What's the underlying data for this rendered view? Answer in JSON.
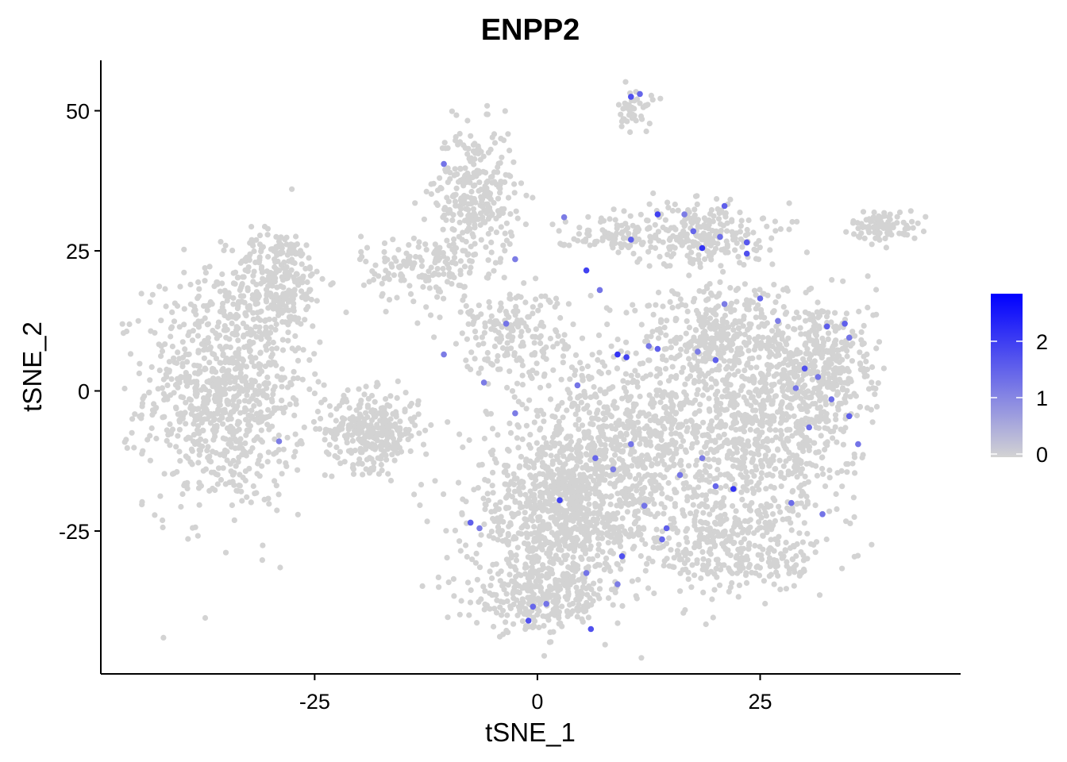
{
  "chart_data": {
    "type": "scatter",
    "title": "ENPP2",
    "xlabel": "tSNE_1",
    "ylabel": "tSNE_2",
    "xlim": [
      -49,
      47.5
    ],
    "ylim": [
      -50.5,
      59
    ],
    "x_ticks": [
      -25,
      0,
      25
    ],
    "y_ticks": [
      50,
      25,
      0,
      -25
    ],
    "grid": false,
    "legend": {
      "position": "right",
      "type": "colorbar",
      "min": 0,
      "max": 2.9,
      "ticks": [
        0,
        1,
        2
      ],
      "colors": {
        "low": "#d3d3d3",
        "high": "#0000ff"
      }
    },
    "clusters": [
      {
        "name": "c1",
        "cx": -35,
        "cy": 0,
        "sx": 6,
        "sy": 14,
        "n": 900
      },
      {
        "name": "c2",
        "cx": -29,
        "cy": 20,
        "sx": 3.5,
        "sy": 6,
        "n": 250
      },
      {
        "name": "c3",
        "cx": -18.5,
        "cy": -7,
        "sx": 3.5,
        "sy": 4.5,
        "n": 320
      },
      {
        "name": "c4",
        "cx": -7,
        "cy": 35,
        "sx": 3,
        "sy": 8,
        "n": 300
      },
      {
        "name": "c5",
        "cx": -13,
        "cy": 22,
        "sx": 4.5,
        "sy": 4,
        "n": 150
      },
      {
        "name": "c6",
        "cx": 11,
        "cy": 50,
        "sx": 1.3,
        "sy": 2.5,
        "n": 40
      },
      {
        "name": "c7",
        "cx": 39,
        "cy": 29.5,
        "sx": 2.5,
        "sy": 1.8,
        "n": 90
      },
      {
        "name": "c8",
        "cx": 3,
        "cy": -22,
        "sx": 7,
        "sy": 10,
        "n": 900
      },
      {
        "name": "c9",
        "cx": 0,
        "cy": -37,
        "sx": 5,
        "sy": 4,
        "n": 250
      },
      {
        "name": "c10",
        "cx": 12,
        "cy": -10,
        "sx": 9,
        "sy": 12,
        "n": 900
      },
      {
        "name": "c11",
        "cx": 27,
        "cy": -5,
        "sx": 6,
        "sy": 12,
        "n": 600
      },
      {
        "name": "c12",
        "cx": 32,
        "cy": 5,
        "sx": 4,
        "sy": 8,
        "n": 300
      },
      {
        "name": "c13",
        "cx": 18,
        "cy": 28,
        "sx": 5,
        "sy": 4,
        "n": 250
      },
      {
        "name": "c14",
        "cx": 8,
        "cy": 28,
        "sx": 4,
        "sy": 2,
        "n": 80
      },
      {
        "name": "c15",
        "cx": -3,
        "cy": 10,
        "sx": 5,
        "sy": 6,
        "n": 200
      },
      {
        "name": "c16",
        "cx": 20,
        "cy": 10,
        "sx": 5,
        "sy": 6,
        "n": 300
      },
      {
        "name": "c17",
        "cx": 23,
        "cy": -28,
        "sx": 6,
        "sy": 6,
        "n": 300
      }
    ],
    "expressing_points": [
      [
        10.5,
        52.5,
        1.8
      ],
      [
        11.5,
        53,
        1.5
      ],
      [
        -10.5,
        40.5,
        1.3
      ],
      [
        13.5,
        31.5,
        2.0
      ],
      [
        16.5,
        31.5,
        1.2
      ],
      [
        21,
        33,
        1.6
      ],
      [
        17.5,
        28.5,
        1.5
      ],
      [
        20.5,
        27.5,
        1.4
      ],
      [
        23.5,
        26.5,
        1.7
      ],
      [
        18.5,
        25.5,
        2.2
      ],
      [
        23.5,
        24.5,
        1.8
      ],
      [
        10.5,
        27,
        1.6
      ],
      [
        5.5,
        21.5,
        2.0
      ],
      [
        7,
        18,
        1.3
      ],
      [
        -2.5,
        23.5,
        1.2
      ],
      [
        25,
        16.5,
        1.5
      ],
      [
        21,
        15.5,
        1.2
      ],
      [
        27,
        12.5,
        1.2
      ],
      [
        34.5,
        12,
        1.6
      ],
      [
        32.5,
        11.5,
        1.6
      ],
      [
        35,
        9.5,
        1.3
      ],
      [
        -3.5,
        12,
        1.3
      ],
      [
        -10.5,
        6.5,
        1.2
      ],
      [
        12.5,
        8,
        1.3
      ],
      [
        13.5,
        7.5,
        1.6
      ],
      [
        10,
        6,
        2.0
      ],
      [
        9,
        6.5,
        2.2
      ],
      [
        18,
        7,
        1.2
      ],
      [
        20,
        5.5,
        1.6
      ],
      [
        30,
        4,
        1.8
      ],
      [
        31.5,
        2.5,
        1.3
      ],
      [
        29,
        0.5,
        1.3
      ],
      [
        33,
        -1.5,
        1.4
      ],
      [
        35,
        -4.5,
        1.6
      ],
      [
        30.5,
        -6.5,
        1.4
      ],
      [
        36,
        -9.5,
        1.3
      ],
      [
        4.5,
        1,
        1.3
      ],
      [
        -6,
        1.5,
        1.2
      ],
      [
        -2.5,
        -4,
        1.2
      ],
      [
        10.5,
        -9.5,
        1.3
      ],
      [
        6.5,
        -12,
        1.5
      ],
      [
        8.5,
        -14,
        1.2
      ],
      [
        18.5,
        -12,
        1.2
      ],
      [
        16,
        -15,
        1.3
      ],
      [
        20,
        -17,
        1.5
      ],
      [
        22,
        -17.5,
        2.2
      ],
      [
        2.5,
        -19.5,
        2.0
      ],
      [
        12,
        -20.5,
        1.3
      ],
      [
        28.5,
        -20,
        1.4
      ],
      [
        32,
        -22,
        1.3
      ],
      [
        14.5,
        -24.5,
        1.6
      ],
      [
        -7.5,
        -23.5,
        1.6
      ],
      [
        -6.5,
        -24.5,
        1.2
      ],
      [
        14,
        -26.5,
        1.5
      ],
      [
        9.5,
        -29.5,
        1.8
      ],
      [
        5.5,
        -32.5,
        1.3
      ],
      [
        9,
        -34.5,
        1.2
      ],
      [
        -0.5,
        -38.5,
        1.5
      ],
      [
        1,
        -38,
        1.3
      ],
      [
        -1,
        -41,
        1.8
      ],
      [
        6,
        -42.5,
        1.8
      ],
      [
        -29,
        -9,
        1.2
      ],
      [
        3,
        31,
        1.2
      ]
    ]
  }
}
